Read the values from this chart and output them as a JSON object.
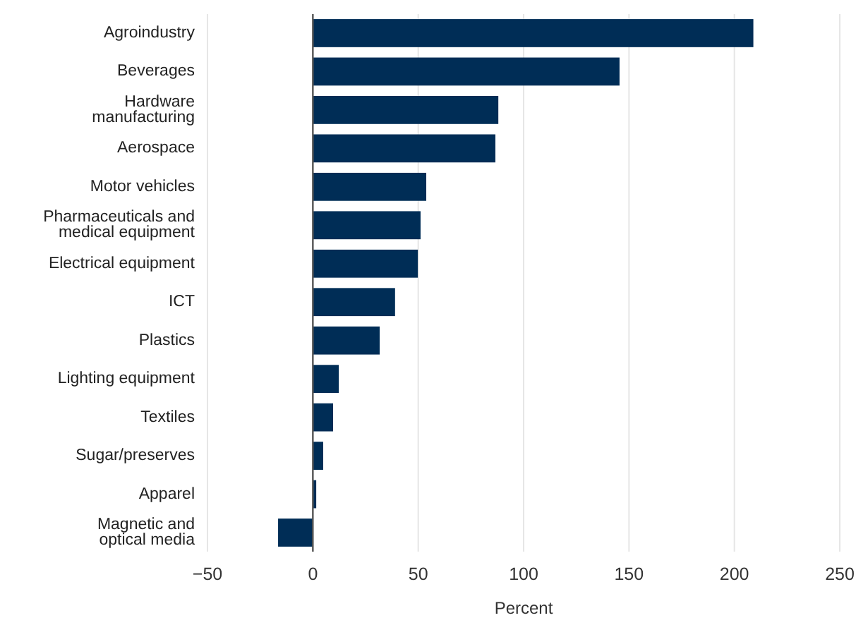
{
  "chart_data": {
    "type": "bar",
    "orientation": "horizontal",
    "xlabel": "Percent",
    "categories": [
      "Agroindustry",
      "Beverages",
      "Hardware\nmanufacturing",
      "Aerospace",
      "Motor vehicles",
      "Pharmaceuticals and\nmedical equipment",
      "Electrical equipment",
      "ICT",
      "Plastics",
      "Lighting equipment",
      "Textiles",
      "Sugar/preserves",
      "Apparel",
      "Magnetic and\noptical media"
    ],
    "values": [
      209,
      145.5,
      88,
      86.6,
      53.8,
      51.1,
      49.8,
      39,
      31.7,
      12.3,
      9.6,
      4.9,
      1.6,
      -16.5
    ],
    "color": "#002d56",
    "xlim": [
      -50,
      250
    ],
    "xticks": [
      {
        "value": -50,
        "label": "−50"
      },
      0,
      50,
      100,
      150,
      200,
      250
    ],
    "grid": "x"
  }
}
